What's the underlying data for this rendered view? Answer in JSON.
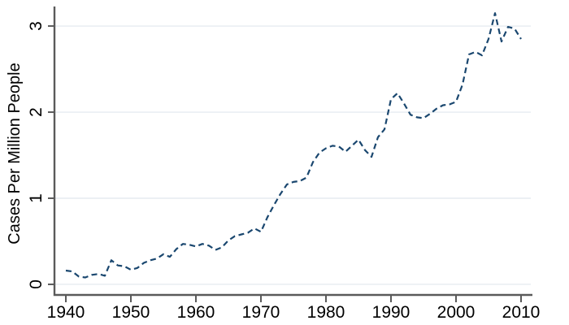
{
  "chart_data": {
    "type": "line",
    "title": "",
    "xlabel": "",
    "ylabel": "Cases Per Million People",
    "x_ticks": [
      1940,
      1950,
      1960,
      1970,
      1980,
      1990,
      2000,
      2010
    ],
    "y_ticks": [
      0,
      1,
      2,
      3
    ],
    "xlim": [
      1938.25,
      2011.75
    ],
    "ylim": [
      -0.123,
      3.227
    ],
    "grid": "horizontal-only",
    "legend_position": "none",
    "line_style": "dashed",
    "colors": {
      "line": "#1a476f",
      "grid": "#e6ecf1",
      "axis": "#5a5a5a",
      "text": "#000000",
      "background": "#ffffff"
    },
    "series": [
      {
        "name": "Cases Per Million People",
        "x": [
          1940,
          1941,
          1942,
          1943,
          1944,
          1945,
          1946,
          1947,
          1948,
          1949,
          1950,
          1951,
          1952,
          1953,
          1954,
          1955,
          1956,
          1957,
          1958,
          1959,
          1960,
          1961,
          1962,
          1963,
          1964,
          1965,
          1966,
          1967,
          1968,
          1969,
          1970,
          1971,
          1972,
          1973,
          1974,
          1975,
          1976,
          1977,
          1978,
          1979,
          1980,
          1981,
          1982,
          1983,
          1984,
          1985,
          1986,
          1987,
          1988,
          1989,
          1990,
          1991,
          1992,
          1993,
          1994,
          1995,
          1996,
          1997,
          1998,
          1999,
          2000,
          2001,
          2002,
          2003,
          2004,
          2005,
          2006,
          2007,
          2008,
          2009,
          2010
        ],
        "y": [
          0.16,
          0.15,
          0.09,
          0.08,
          0.11,
          0.12,
          0.1,
          0.28,
          0.22,
          0.21,
          0.17,
          0.19,
          0.25,
          0.28,
          0.3,
          0.35,
          0.32,
          0.41,
          0.47,
          0.46,
          0.44,
          0.47,
          0.45,
          0.4,
          0.43,
          0.51,
          0.56,
          0.58,
          0.6,
          0.65,
          0.61,
          0.78,
          0.92,
          1.05,
          1.16,
          1.19,
          1.2,
          1.24,
          1.42,
          1.53,
          1.58,
          1.61,
          1.6,
          1.54,
          1.61,
          1.68,
          1.56,
          1.48,
          1.71,
          1.8,
          2.15,
          2.22,
          2.1,
          1.97,
          1.94,
          1.93,
          1.98,
          2.04,
          2.08,
          2.09,
          2.12,
          2.32,
          2.67,
          2.7,
          2.66,
          2.85,
          3.15,
          2.82,
          2.99,
          2.97,
          2.85
        ]
      }
    ]
  }
}
